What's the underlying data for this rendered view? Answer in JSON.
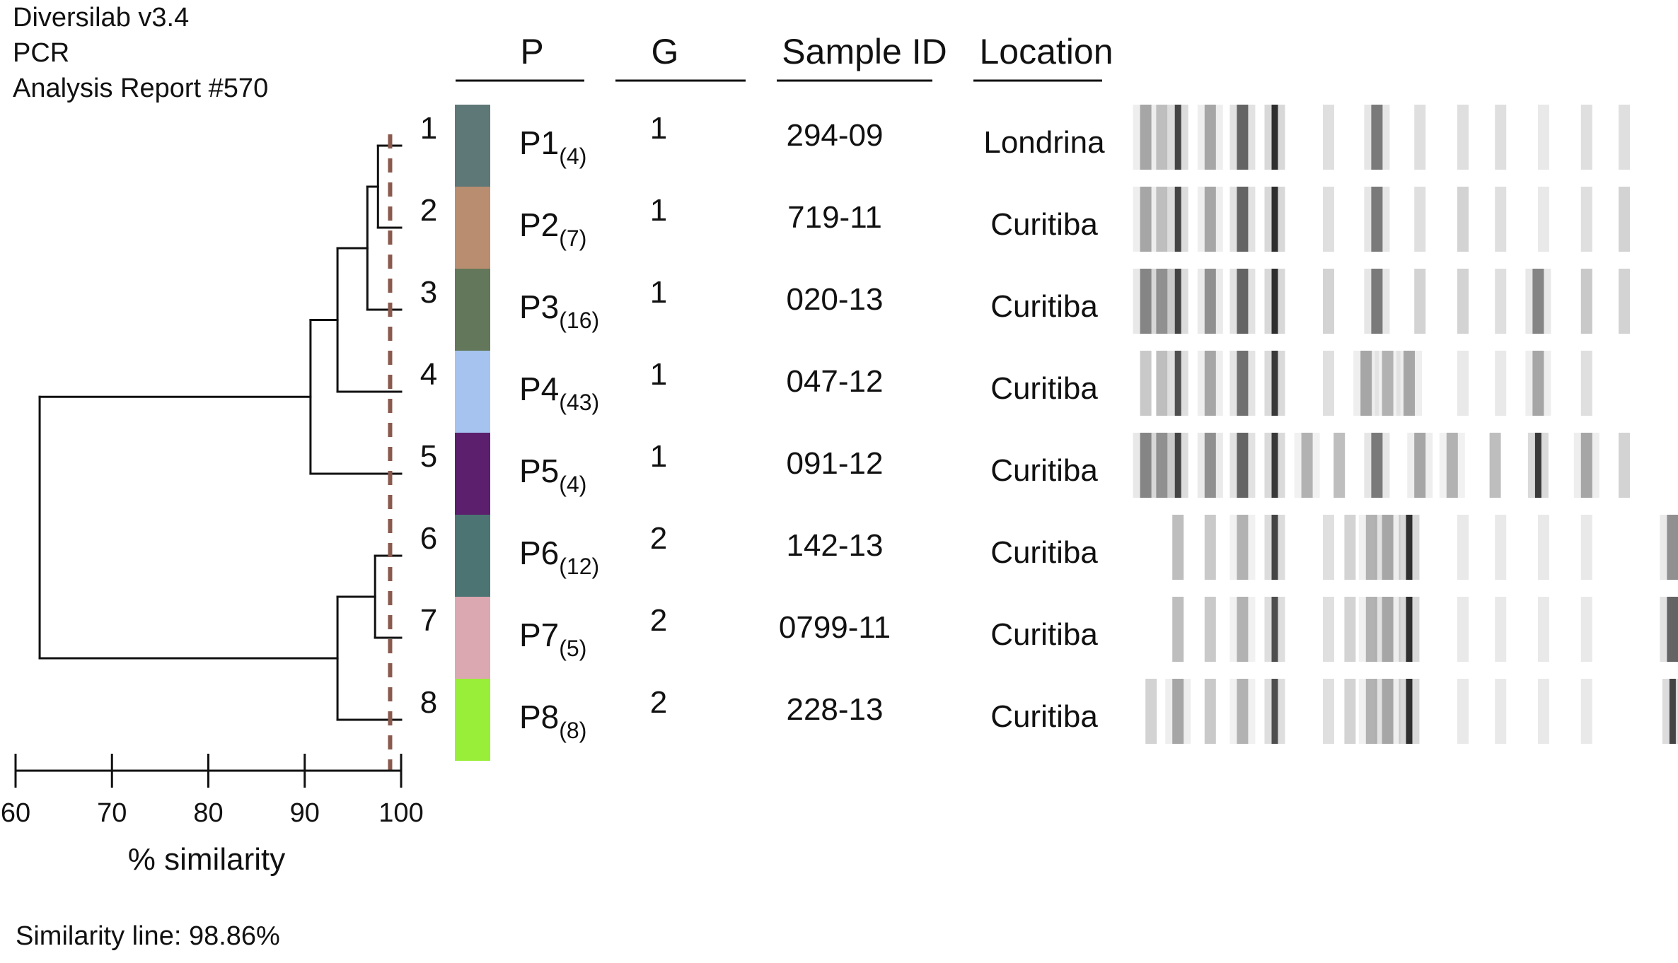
{
  "header": {
    "software": "Diversilab v3.4",
    "method": "PCR",
    "report": "Analysis Report #570"
  },
  "columns": {
    "p": "P",
    "g": "G",
    "sample_id": "Sample ID",
    "location": "Location"
  },
  "axis": {
    "label": "% similarity",
    "ticks": [
      60,
      70,
      80,
      90,
      100
    ],
    "min": 60,
    "max": 100
  },
  "similarity_threshold": 98.86,
  "similarity_note": "Similarity line: 98.86%",
  "rows": [
    {
      "num": "1",
      "pattern": "P1",
      "count": "(4)",
      "group": "1",
      "sample_id": "294-09",
      "location": "Londrina",
      "color": "#5e7877"
    },
    {
      "num": "2",
      "pattern": "P2",
      "count": "(7)",
      "group": "1",
      "sample_id": "719-11",
      "location": "Curitiba",
      "color": "#b98d70"
    },
    {
      "num": "3",
      "pattern": "P3",
      "count": "(16)",
      "group": "1",
      "sample_id": "020-13",
      "location": "Curitiba",
      "color": "#63785a"
    },
    {
      "num": "4",
      "pattern": "P4",
      "count": "(43)",
      "group": "1",
      "sample_id": "047-12",
      "location": "Curitiba",
      "color": "#a5c3ee"
    },
    {
      "num": "5",
      "pattern": "P5",
      "count": "(4)",
      "group": "1",
      "sample_id": "091-12",
      "location": "Curitiba",
      "color": "#5c1f6e"
    },
    {
      "num": "6",
      "pattern": "P6",
      "count": "(12)",
      "group": "2",
      "sample_id": "142-13",
      "location": "Curitiba",
      "color": "#4b7472"
    },
    {
      "num": "7",
      "pattern": "P7",
      "count": "(5)",
      "group": "2",
      "sample_id": "0799-11",
      "location": "Curitiba",
      "color": "#dba7b1"
    },
    {
      "num": "8",
      "pattern": "P8",
      "count": "(8)",
      "group": "2",
      "sample_id": "228-13",
      "location": "Curitiba",
      "color": "#99ee3a"
    }
  ],
  "dendrogram": {
    "nodes": [
      {
        "id": "n12",
        "children": [
          "1",
          "2"
        ],
        "similarity": 97.6
      },
      {
        "id": "n123",
        "children": [
          "n12",
          "3"
        ],
        "similarity": 96.5
      },
      {
        "id": "n1234",
        "children": [
          "n123",
          "4"
        ],
        "similarity": 93.4
      },
      {
        "id": "n1_5",
        "children": [
          "n1234",
          "5"
        ],
        "similarity": 90.6
      },
      {
        "id": "n67",
        "children": [
          "6",
          "7"
        ],
        "similarity": 97.3
      },
      {
        "id": "n678",
        "children": [
          "n67",
          "8"
        ],
        "similarity": 93.4
      },
      {
        "id": "root",
        "children": [
          "n1_5",
          "n678"
        ],
        "similarity": 62.5
      }
    ]
  },
  "bands": [
    [
      [
        0.01,
        0.4
      ],
      [
        0.04,
        0.3
      ],
      [
        0.07,
        0.85
      ],
      [
        0.13,
        0.4
      ],
      [
        0.19,
        0.7
      ],
      [
        0.25,
        0.95
      ],
      [
        0.35,
        0.15
      ],
      [
        0.44,
        0.6
      ],
      [
        0.52,
        0.15
      ],
      [
        0.6,
        0.15
      ],
      [
        0.67,
        0.15
      ],
      [
        0.75,
        0.1
      ],
      [
        0.83,
        0.15
      ],
      [
        0.9,
        0.15
      ]
    ],
    [
      [
        0.01,
        0.4
      ],
      [
        0.04,
        0.3
      ],
      [
        0.07,
        0.85
      ],
      [
        0.13,
        0.4
      ],
      [
        0.19,
        0.7
      ],
      [
        0.25,
        0.95
      ],
      [
        0.35,
        0.15
      ],
      [
        0.44,
        0.6
      ],
      [
        0.52,
        0.15
      ],
      [
        0.6,
        0.2
      ],
      [
        0.67,
        0.15
      ],
      [
        0.75,
        0.1
      ],
      [
        0.83,
        0.15
      ],
      [
        0.9,
        0.2
      ]
    ],
    [
      [
        0.01,
        0.55
      ],
      [
        0.04,
        0.5
      ],
      [
        0.07,
        0.85
      ],
      [
        0.13,
        0.5
      ],
      [
        0.19,
        0.7
      ],
      [
        0.25,
        0.95
      ],
      [
        0.35,
        0.2
      ],
      [
        0.44,
        0.6
      ],
      [
        0.52,
        0.2
      ],
      [
        0.6,
        0.2
      ],
      [
        0.67,
        0.15
      ],
      [
        0.74,
        0.55
      ],
      [
        0.83,
        0.25
      ],
      [
        0.9,
        0.2
      ]
    ],
    [
      [
        0.01,
        0.25
      ],
      [
        0.04,
        0.3
      ],
      [
        0.07,
        0.8
      ],
      [
        0.13,
        0.4
      ],
      [
        0.19,
        0.65
      ],
      [
        0.25,
        0.9
      ],
      [
        0.35,
        0.15
      ],
      [
        0.42,
        0.4
      ],
      [
        0.46,
        0.35
      ],
      [
        0.5,
        0.4
      ],
      [
        0.6,
        0.1
      ],
      [
        0.67,
        0.1
      ],
      [
        0.74,
        0.4
      ],
      [
        0.83,
        0.15
      ]
    ],
    [
      [
        0.01,
        0.55
      ],
      [
        0.04,
        0.5
      ],
      [
        0.07,
        0.85
      ],
      [
        0.13,
        0.5
      ],
      [
        0.19,
        0.7
      ],
      [
        0.25,
        0.9
      ],
      [
        0.31,
        0.35
      ],
      [
        0.37,
        0.3
      ],
      [
        0.44,
        0.6
      ],
      [
        0.52,
        0.4
      ],
      [
        0.58,
        0.35
      ],
      [
        0.66,
        0.3
      ],
      [
        0.74,
        0.9
      ],
      [
        0.83,
        0.4
      ],
      [
        0.9,
        0.2
      ]
    ],
    [
      [
        0.07,
        0.3
      ],
      [
        0.13,
        0.25
      ],
      [
        0.19,
        0.35
      ],
      [
        0.25,
        0.85
      ],
      [
        0.35,
        0.15
      ],
      [
        0.39,
        0.2
      ],
      [
        0.43,
        0.35
      ],
      [
        0.46,
        0.4
      ],
      [
        0.5,
        0.95
      ],
      [
        0.6,
        0.1
      ],
      [
        0.67,
        0.1
      ],
      [
        0.75,
        0.1
      ],
      [
        0.83,
        0.1
      ],
      [
        0.99,
        0.5
      ]
    ],
    [
      [
        0.07,
        0.3
      ],
      [
        0.13,
        0.25
      ],
      [
        0.19,
        0.35
      ],
      [
        0.25,
        0.8
      ],
      [
        0.35,
        0.15
      ],
      [
        0.39,
        0.2
      ],
      [
        0.43,
        0.35
      ],
      [
        0.46,
        0.4
      ],
      [
        0.5,
        0.95
      ],
      [
        0.6,
        0.1
      ],
      [
        0.67,
        0.1
      ],
      [
        0.75,
        0.1
      ],
      [
        0.83,
        0.1
      ],
      [
        0.99,
        0.7
      ]
    ],
    [
      [
        0.02,
        0.2
      ],
      [
        0.07,
        0.4
      ],
      [
        0.13,
        0.25
      ],
      [
        0.19,
        0.35
      ],
      [
        0.25,
        0.8
      ],
      [
        0.35,
        0.15
      ],
      [
        0.39,
        0.2
      ],
      [
        0.43,
        0.35
      ],
      [
        0.46,
        0.4
      ],
      [
        0.5,
        0.95
      ],
      [
        0.6,
        0.1
      ],
      [
        0.67,
        0.1
      ],
      [
        0.75,
        0.1
      ],
      [
        0.83,
        0.1
      ],
      [
        0.99,
        0.85
      ]
    ]
  ]
}
